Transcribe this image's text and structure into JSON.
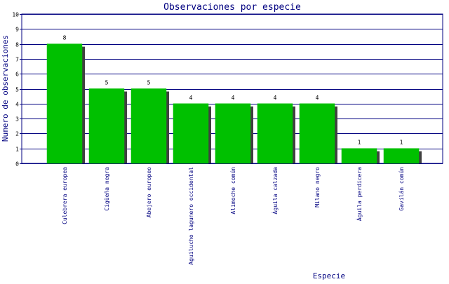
{
  "colors": {
    "bar": "#00c000",
    "bar_shadow": "#404040",
    "grid": "#000080",
    "axis_text": "#000080",
    "background": "#ffffff"
  },
  "chart_data": {
    "type": "bar",
    "title": "Observaciones por especie",
    "xlabel": "Especie",
    "ylabel": "Numero de observaciones",
    "ylim": [
      0,
      10
    ],
    "yticks": [
      "0",
      "1",
      "2",
      "3",
      "4",
      "5",
      "6",
      "7",
      "8",
      "9",
      "10"
    ],
    "grid": true,
    "categories": [
      "Culebrera europea",
      "Cigüeña negra",
      "Abejero europeo",
      "Aguilucho lagunero occidental",
      "Alimoche común",
      "Águila calzada",
      "Milano negro",
      "Águila perdicera",
      "Gavilán común"
    ],
    "values": [
      8,
      5,
      5,
      4,
      4,
      4,
      4,
      1,
      1
    ],
    "value_labels": [
      "8",
      "5",
      "5",
      "4",
      "4",
      "4",
      "4",
      "1",
      "1"
    ]
  }
}
